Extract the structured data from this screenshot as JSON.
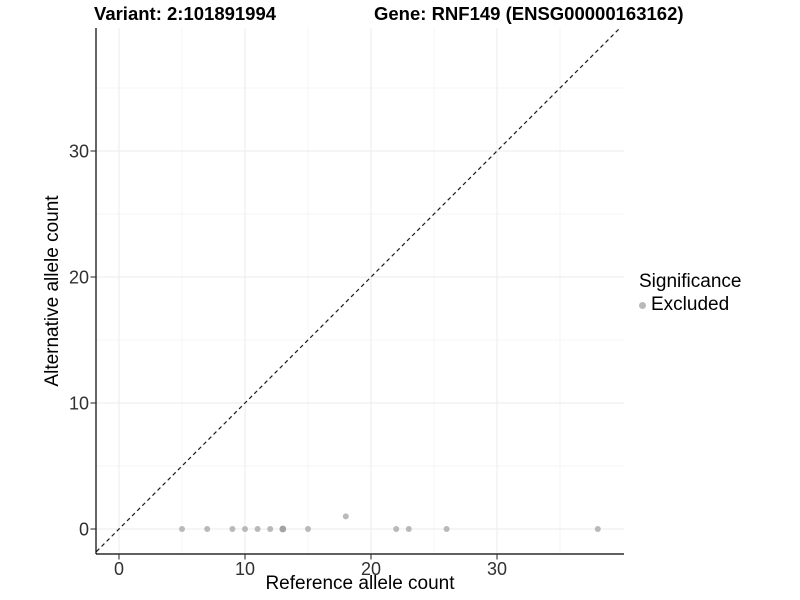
{
  "titles": {
    "variant": "Variant: 2:101891994",
    "gene": "Gene: RNF149 (ENSG00000163162)"
  },
  "chart_data": {
    "type": "scatter",
    "title_left": "Variant: 2:101891994",
    "title_right": "Gene: RNF149 (ENSG00000163162)",
    "xlabel": "Reference allele count",
    "ylabel": "Alternative allele count",
    "xlim": [
      -2,
      40
    ],
    "ylim": [
      -2,
      40
    ],
    "x_ticks": [
      0,
      10,
      20,
      30
    ],
    "y_ticks": [
      0,
      10,
      20,
      30
    ],
    "x_minor_gridlines": [
      5,
      15,
      25,
      35
    ],
    "y_minor_gridlines": [
      5,
      15,
      25,
      35
    ],
    "grid": "major and minor gridlines on white background",
    "identity_line": {
      "type": "y=x",
      "style": "dashed",
      "color": "#1a1a1a"
    },
    "legend": {
      "title": "Significance",
      "position": "right",
      "items": [
        {
          "label": "Excluded",
          "color": "#b9b9b9"
        }
      ]
    },
    "series": [
      {
        "name": "Excluded",
        "color": "#b9b9b9",
        "points": [
          [
            5,
            0
          ],
          [
            7,
            0
          ],
          [
            9,
            0
          ],
          [
            10,
            0
          ],
          [
            11,
            0
          ],
          [
            12,
            0
          ],
          [
            13,
            0
          ],
          [
            13,
            0
          ],
          [
            15,
            0
          ],
          [
            18,
            1
          ],
          [
            22,
            0
          ],
          [
            23,
            0
          ],
          [
            26,
            0
          ],
          [
            38,
            0
          ]
        ]
      }
    ]
  },
  "colors": {
    "point": "#b9b9b9",
    "point_overlap": "#a2a2a2",
    "grid_major": "#ebebeb",
    "grid_minor": "#f4f4f4",
    "axis_line": "#000000",
    "tick_mark": "#333333",
    "tick_label": "#303030",
    "axis_title": "#000000",
    "identity_line": "#1a1a1a",
    "background": "#ffffff"
  }
}
